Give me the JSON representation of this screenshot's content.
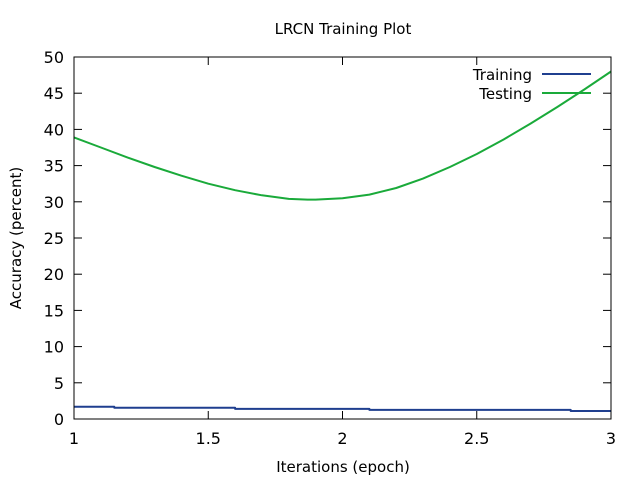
{
  "chart_data": {
    "type": "line",
    "title": "LRCN Training Plot",
    "xlabel": "Iterations (epoch)",
    "ylabel": "Accuracy (percent)",
    "xlim": [
      1,
      3
    ],
    "ylim": [
      0,
      50
    ],
    "xticks": [
      1,
      1.5,
      2,
      2.5,
      3
    ],
    "xtick_labels": [
      "1",
      "1.5",
      "2",
      "2.5",
      "3"
    ],
    "yticks": [
      0,
      5,
      10,
      15,
      20,
      25,
      30,
      35,
      40,
      45,
      50
    ],
    "ytick_labels": [
      "0",
      "5",
      "10",
      "15",
      "20",
      "25",
      "30",
      "35",
      "40",
      "45",
      "50"
    ],
    "grid": false,
    "legend_position": "top-right",
    "series": [
      {
        "name": "Training",
        "color": "#1f3f8f",
        "x": [
          1.0,
          1.15,
          1.15,
          1.6,
          1.6,
          2.1,
          2.1,
          2.85,
          2.85,
          3.0
        ],
        "y": [
          1.7,
          1.7,
          1.55,
          1.55,
          1.4,
          1.4,
          1.25,
          1.25,
          1.1,
          1.1
        ]
      },
      {
        "name": "Testing",
        "color": "#1aaa3a",
        "x": [
          1.0,
          1.1,
          1.2,
          1.3,
          1.4,
          1.5,
          1.6,
          1.7,
          1.8,
          1.87,
          1.9,
          2.0,
          2.1,
          2.2,
          2.3,
          2.4,
          2.5,
          2.6,
          2.7,
          2.8,
          2.9,
          3.0
        ],
        "y": [
          38.9,
          37.5,
          36.1,
          34.8,
          33.6,
          32.5,
          31.6,
          30.9,
          30.4,
          30.3,
          30.3,
          30.5,
          31.0,
          31.9,
          33.2,
          34.8,
          36.6,
          38.6,
          40.8,
          43.1,
          45.5,
          48.0
        ]
      }
    ]
  }
}
